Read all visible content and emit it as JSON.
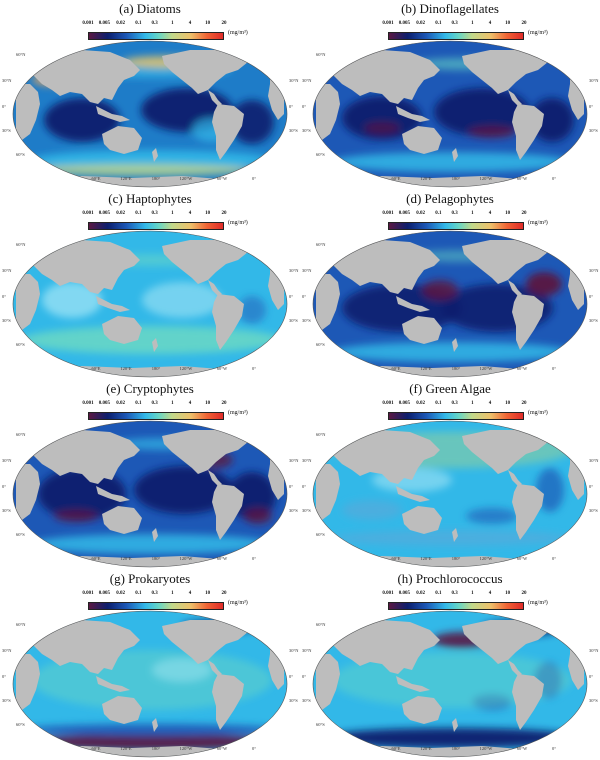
{
  "colorbar": {
    "ticks": [
      "0.001",
      "0.005",
      "0.02",
      "0.1",
      "0.3",
      "1",
      "4",
      "10",
      "20"
    ],
    "unit": "(mg/m³)"
  },
  "lat_labels": [
    "60°N",
    "30°N",
    "0°",
    "30°S",
    "60°S"
  ],
  "lon_labels": [
    "60°E",
    "120°E",
    "180°",
    "120°W",
    "60°W",
    "0°"
  ],
  "colors": {
    "land": "#bdbdbd",
    "very_low": "#5a1842",
    "low": "#0d1f6e",
    "medium_low": "#1d58b6",
    "medium": "#32b8e8",
    "high": "#e02a28"
  },
  "panels": [
    {
      "title": "(a) Diatoms",
      "pattern": "diatoms"
    },
    {
      "title": "(b) Dinoflagellates",
      "pattern": "dino"
    },
    {
      "title": "(c) Haptophytes",
      "pattern": "hapto"
    },
    {
      "title": "(d) Pelagophytes",
      "pattern": "pelago"
    },
    {
      "title": "(e) Cryptophytes",
      "pattern": "crypto"
    },
    {
      "title": "(f) Green Algae",
      "pattern": "green"
    },
    {
      "title": "(g) Prokaryotes",
      "pattern": "prok"
    },
    {
      "title": "(h) Prochlorococcus",
      "pattern": "prochl"
    }
  ]
}
